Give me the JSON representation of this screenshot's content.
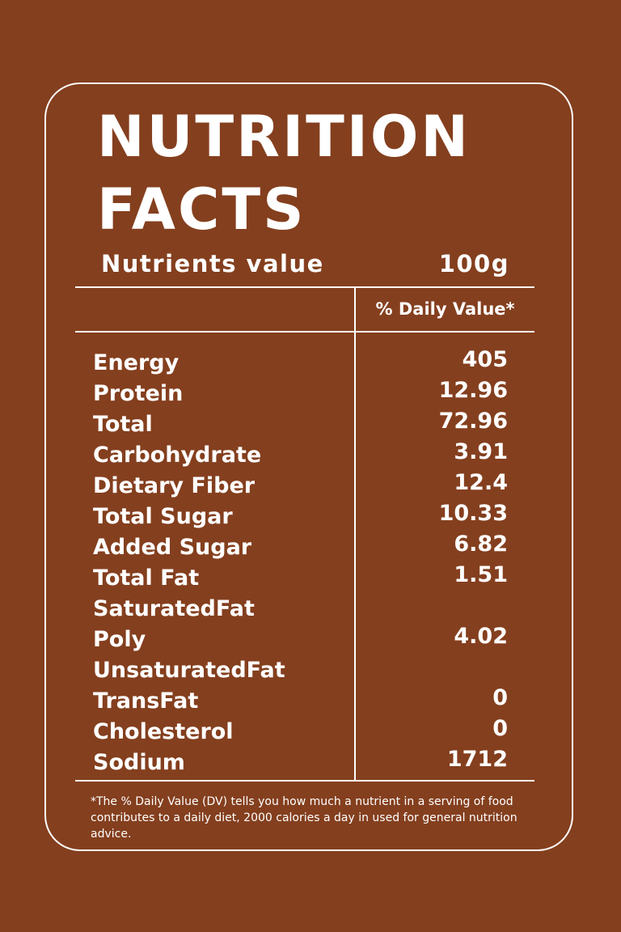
{
  "title": {
    "line1": "NUTRITION",
    "line2": "FACTS"
  },
  "subheader": {
    "nutrients_label": "Nutrients value",
    "amount_label": "100g"
  },
  "table": {
    "daily_value_header": "% Daily Value*",
    "rows": [
      {
        "label": "Energy",
        "value": "405"
      },
      {
        "label": "Protein",
        "value": "12.96"
      },
      {
        "label": "Total",
        "value": "72.96"
      },
      {
        "label": "Carbohydrate",
        "value": "3.91"
      },
      {
        "label": "Dietary Fiber",
        "value": "12.4"
      },
      {
        "label": "Total Sugar",
        "value": "10.33"
      },
      {
        "label": "Added Sugar",
        "value": "6.82"
      },
      {
        "label": "Total Fat",
        "value": "1.51"
      },
      {
        "label": "SaturatedFat",
        "value": ""
      },
      {
        "label": "Poly",
        "value": "4.02"
      },
      {
        "label": "UnsaturatedFat",
        "value": ""
      },
      {
        "label": "TransFat",
        "value": "0"
      },
      {
        "label": "Cholesterol",
        "value": "0"
      },
      {
        "label": "Sodium",
        "value": "1712"
      }
    ]
  },
  "footnote": "*The % Daily Value (DV) tells you how much a nutrient in a serving of food contributes to a daily diet, 2000 calories a day in used for general nutrition advice.",
  "colors": {
    "background": "#843F1E",
    "foreground": "#FFFFFF"
  }
}
